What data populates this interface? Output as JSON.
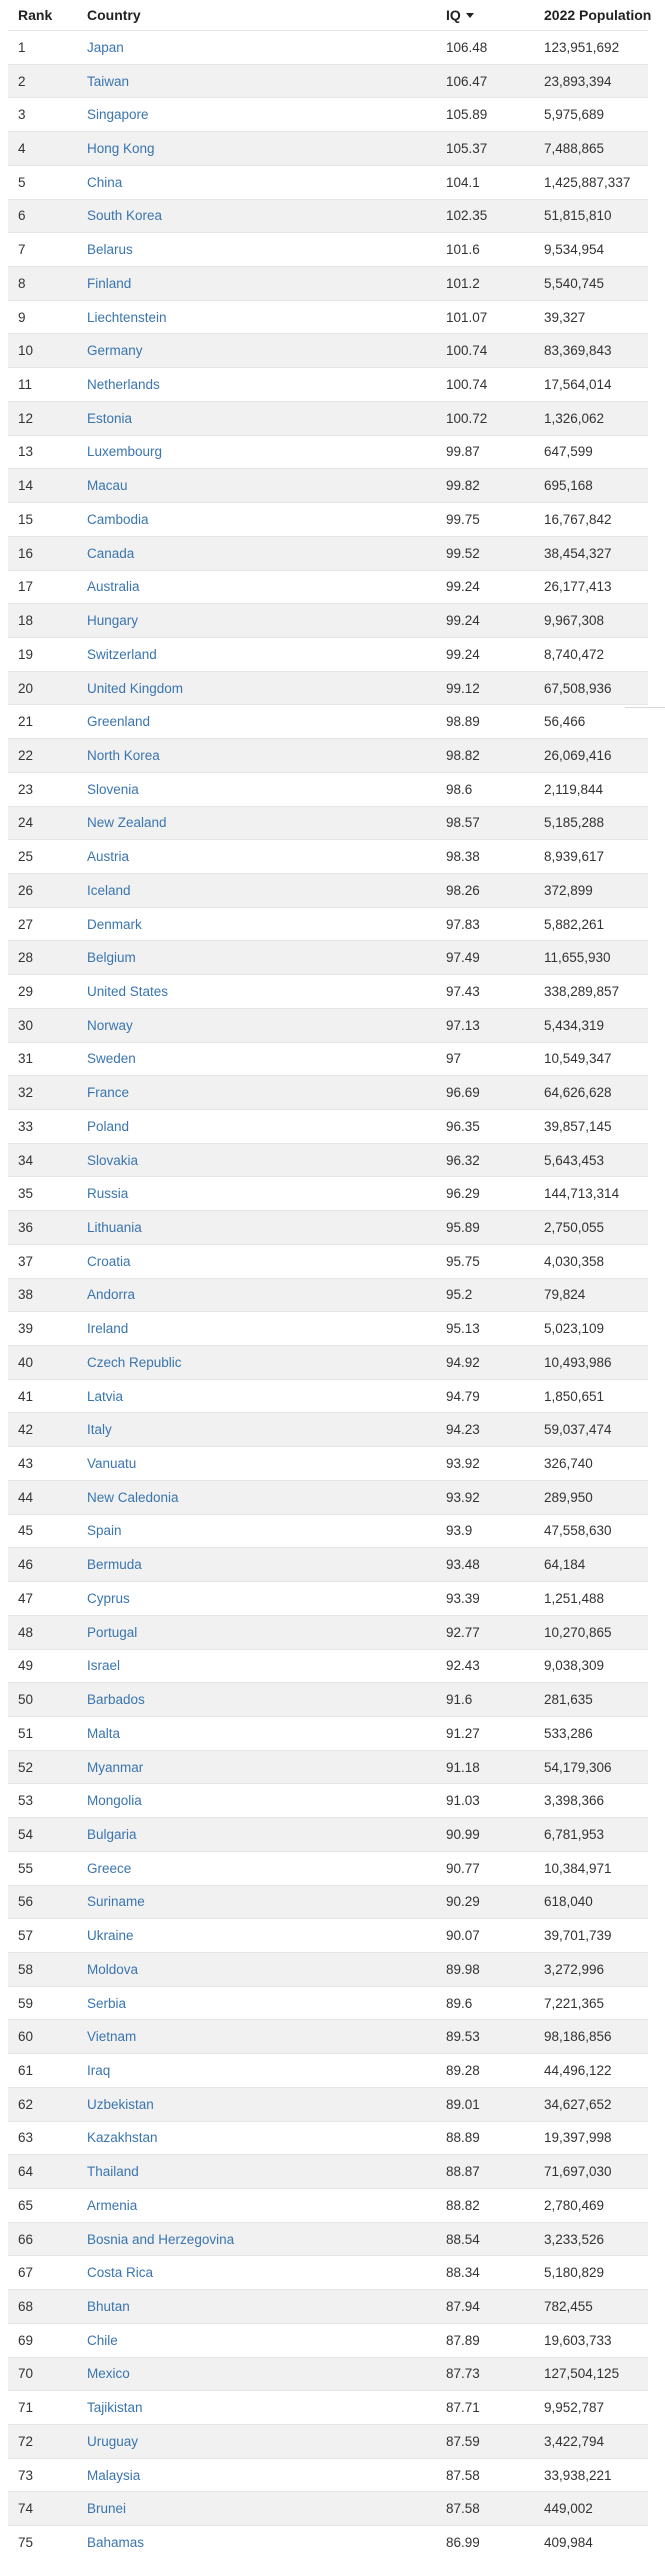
{
  "header": {
    "rank": "Rank",
    "country": "Country",
    "iq": "IQ",
    "population": "2022 Population"
  },
  "rows": [
    {
      "rank": "1",
      "country": "Japan",
      "iq": "106.48",
      "population": "123,951,692"
    },
    {
      "rank": "2",
      "country": "Taiwan",
      "iq": "106.47",
      "population": "23,893,394"
    },
    {
      "rank": "3",
      "country": "Singapore",
      "iq": "105.89",
      "population": "5,975,689"
    },
    {
      "rank": "4",
      "country": "Hong Kong",
      "iq": "105.37",
      "population": "7,488,865"
    },
    {
      "rank": "5",
      "country": "China",
      "iq": "104.1",
      "population": "1,425,887,337"
    },
    {
      "rank": "6",
      "country": "South Korea",
      "iq": "102.35",
      "population": "51,815,810"
    },
    {
      "rank": "7",
      "country": "Belarus",
      "iq": "101.6",
      "population": "9,534,954"
    },
    {
      "rank": "8",
      "country": "Finland",
      "iq": "101.2",
      "population": "5,540,745"
    },
    {
      "rank": "9",
      "country": "Liechtenstein",
      "iq": "101.07",
      "population": "39,327"
    },
    {
      "rank": "10",
      "country": "Germany",
      "iq": "100.74",
      "population": "83,369,843"
    },
    {
      "rank": "11",
      "country": "Netherlands",
      "iq": "100.74",
      "population": "17,564,014"
    },
    {
      "rank": "12",
      "country": "Estonia",
      "iq": "100.72",
      "population": "1,326,062"
    },
    {
      "rank": "13",
      "country": "Luxembourg",
      "iq": "99.87",
      "population": "647,599"
    },
    {
      "rank": "14",
      "country": "Macau",
      "iq": "99.82",
      "population": "695,168"
    },
    {
      "rank": "15",
      "country": "Cambodia",
      "iq": "99.75",
      "population": "16,767,842"
    },
    {
      "rank": "16",
      "country": "Canada",
      "iq": "99.52",
      "population": "38,454,327"
    },
    {
      "rank": "17",
      "country": "Australia",
      "iq": "99.24",
      "population": "26,177,413"
    },
    {
      "rank": "18",
      "country": "Hungary",
      "iq": "99.24",
      "population": "9,967,308"
    },
    {
      "rank": "19",
      "country": "Switzerland",
      "iq": "99.24",
      "population": "8,740,472"
    },
    {
      "rank": "20",
      "country": "United Kingdom",
      "iq": "99.12",
      "population": "67,508,936"
    },
    {
      "rank": "21",
      "country": "Greenland",
      "iq": "98.89",
      "population": "56,466"
    },
    {
      "rank": "22",
      "country": "North Korea",
      "iq": "98.82",
      "population": "26,069,416"
    },
    {
      "rank": "23",
      "country": "Slovenia",
      "iq": "98.6",
      "population": "2,119,844"
    },
    {
      "rank": "24",
      "country": "New Zealand",
      "iq": "98.57",
      "population": "5,185,288"
    },
    {
      "rank": "25",
      "country": "Austria",
      "iq": "98.38",
      "population": "8,939,617"
    },
    {
      "rank": "26",
      "country": "Iceland",
      "iq": "98.26",
      "population": "372,899"
    },
    {
      "rank": "27",
      "country": "Denmark",
      "iq": "97.83",
      "population": "5,882,261"
    },
    {
      "rank": "28",
      "country": "Belgium",
      "iq": "97.49",
      "population": "11,655,930"
    },
    {
      "rank": "29",
      "country": "United States",
      "iq": "97.43",
      "population": "338,289,857"
    },
    {
      "rank": "30",
      "country": "Norway",
      "iq": "97.13",
      "population": "5,434,319"
    },
    {
      "rank": "31",
      "country": "Sweden",
      "iq": "97",
      "population": "10,549,347"
    },
    {
      "rank": "32",
      "country": "France",
      "iq": "96.69",
      "population": "64,626,628"
    },
    {
      "rank": "33",
      "country": "Poland",
      "iq": "96.35",
      "population": "39,857,145"
    },
    {
      "rank": "34",
      "country": "Slovakia",
      "iq": "96.32",
      "population": "5,643,453"
    },
    {
      "rank": "35",
      "country": "Russia",
      "iq": "96.29",
      "population": "144,713,314"
    },
    {
      "rank": "36",
      "country": "Lithuania",
      "iq": "95.89",
      "population": "2,750,055"
    },
    {
      "rank": "37",
      "country": "Croatia",
      "iq": "95.75",
      "population": "4,030,358"
    },
    {
      "rank": "38",
      "country": "Andorra",
      "iq": "95.2",
      "population": "79,824"
    },
    {
      "rank": "39",
      "country": "Ireland",
      "iq": "95.13",
      "population": "5,023,109"
    },
    {
      "rank": "40",
      "country": "Czech Republic",
      "iq": "94.92",
      "population": "10,493,986"
    },
    {
      "rank": "41",
      "country": "Latvia",
      "iq": "94.79",
      "population": "1,850,651"
    },
    {
      "rank": "42",
      "country": "Italy",
      "iq": "94.23",
      "population": "59,037,474"
    },
    {
      "rank": "43",
      "country": "Vanuatu",
      "iq": "93.92",
      "population": "326,740"
    },
    {
      "rank": "44",
      "country": "New Caledonia",
      "iq": "93.92",
      "population": "289,950"
    },
    {
      "rank": "45",
      "country": "Spain",
      "iq": "93.9",
      "population": "47,558,630"
    },
    {
      "rank": "46",
      "country": "Bermuda",
      "iq": "93.48",
      "population": "64,184"
    },
    {
      "rank": "47",
      "country": "Cyprus",
      "iq": "93.39",
      "population": "1,251,488"
    },
    {
      "rank": "48",
      "country": "Portugal",
      "iq": "92.77",
      "population": "10,270,865"
    },
    {
      "rank": "49",
      "country": "Israel",
      "iq": "92.43",
      "population": "9,038,309"
    },
    {
      "rank": "50",
      "country": "Barbados",
      "iq": "91.6",
      "population": "281,635"
    },
    {
      "rank": "51",
      "country": "Malta",
      "iq": "91.27",
      "population": "533,286"
    },
    {
      "rank": "52",
      "country": "Myanmar",
      "iq": "91.18",
      "population": "54,179,306"
    },
    {
      "rank": "53",
      "country": "Mongolia",
      "iq": "91.03",
      "population": "3,398,366"
    },
    {
      "rank": "54",
      "country": "Bulgaria",
      "iq": "90.99",
      "population": "6,781,953"
    },
    {
      "rank": "55",
      "country": "Greece",
      "iq": "90.77",
      "population": "10,384,971"
    },
    {
      "rank": "56",
      "country": "Suriname",
      "iq": "90.29",
      "population": "618,040"
    },
    {
      "rank": "57",
      "country": "Ukraine",
      "iq": "90.07",
      "population": "39,701,739"
    },
    {
      "rank": "58",
      "country": "Moldova",
      "iq": "89.98",
      "population": "3,272,996"
    },
    {
      "rank": "59",
      "country": "Serbia",
      "iq": "89.6",
      "population": "7,221,365"
    },
    {
      "rank": "60",
      "country": "Vietnam",
      "iq": "89.53",
      "population": "98,186,856"
    },
    {
      "rank": "61",
      "country": "Iraq",
      "iq": "89.28",
      "population": "44,496,122"
    },
    {
      "rank": "62",
      "country": "Uzbekistan",
      "iq": "89.01",
      "population": "34,627,652"
    },
    {
      "rank": "63",
      "country": "Kazakhstan",
      "iq": "88.89",
      "population": "19,397,998"
    },
    {
      "rank": "64",
      "country": "Thailand",
      "iq": "88.87",
      "population": "71,697,030"
    },
    {
      "rank": "65",
      "country": "Armenia",
      "iq": "88.82",
      "population": "2,780,469"
    },
    {
      "rank": "66",
      "country": "Bosnia and Herzegovina",
      "iq": "88.54",
      "population": "3,233,526"
    },
    {
      "rank": "67",
      "country": "Costa Rica",
      "iq": "88.34",
      "population": "5,180,829"
    },
    {
      "rank": "68",
      "country": "Bhutan",
      "iq": "87.94",
      "population": "782,455"
    },
    {
      "rank": "69",
      "country": "Chile",
      "iq": "87.89",
      "population": "19,603,733"
    },
    {
      "rank": "70",
      "country": "Mexico",
      "iq": "87.73",
      "population": "127,504,125"
    },
    {
      "rank": "71",
      "country": "Tajikistan",
      "iq": "87.71",
      "population": "9,952,787"
    },
    {
      "rank": "72",
      "country": "Uruguay",
      "iq": "87.59",
      "population": "3,422,794"
    },
    {
      "rank": "73",
      "country": "Malaysia",
      "iq": "87.58",
      "population": "33,938,221"
    },
    {
      "rank": "74",
      "country": "Brunei",
      "iq": "87.58",
      "population": "449,002"
    },
    {
      "rank": "75",
      "country": "Bahamas",
      "iq": "86.99",
      "population": "409,984"
    }
  ]
}
